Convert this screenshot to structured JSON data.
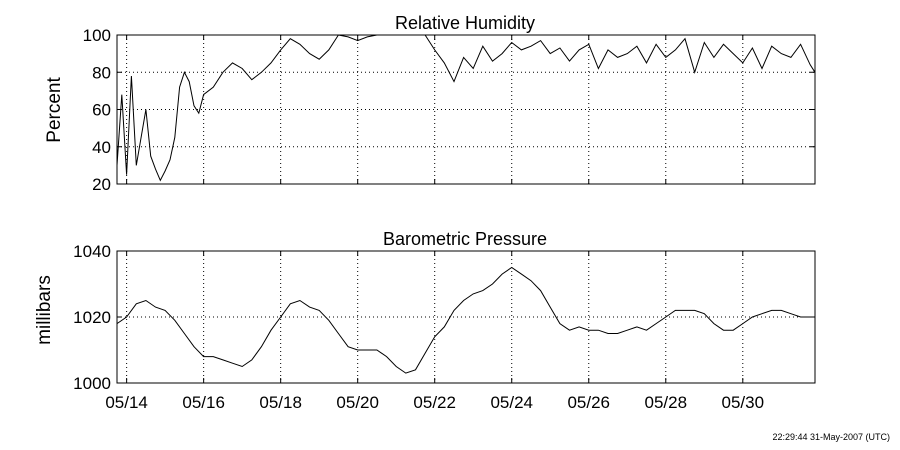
{
  "footer": {
    "timestamp": "22:29:44 31-May-2007 (UTC)"
  },
  "chart_data": [
    {
      "type": "line",
      "title": "Relative Humidity",
      "ylabel": "Percent",
      "xlabel": "",
      "x_axis_type": "date",
      "xlim": [
        "05/13 18:00",
        "05/31 21:00"
      ],
      "ylim": [
        20,
        100
      ],
      "yticks": [
        20,
        40,
        60,
        80,
        100
      ],
      "xticks": [
        "05/14",
        "05/16",
        "05/18",
        "05/20",
        "05/22",
        "05/24",
        "05/26",
        "05/28",
        "05/30"
      ],
      "xtick_labels_shown": false,
      "grid": true,
      "color": "#000000",
      "series": [
        {
          "x": [
            "05/13 18:00",
            "05/13 21:00",
            "05/14 00:00",
            "05/14 03:00",
            "05/14 06:00",
            "05/14 09:00",
            "05/14 12:00",
            "05/14 15:00",
            "05/14 18:00",
            "05/14 21:00",
            "05/15 00:00",
            "05/15 03:00",
            "05/15 06:00",
            "05/15 09:00",
            "05/15 12:00",
            "05/15 15:00",
            "05/15 18:00",
            "05/15 21:00",
            "05/16 00:00",
            "05/16 06:00",
            "05/16 12:00",
            "05/16 18:00",
            "05/17 00:00",
            "05/17 06:00",
            "05/17 12:00",
            "05/17 18:00",
            "05/18 00:00",
            "05/18 06:00",
            "05/18 12:00",
            "05/18 18:00",
            "05/19 00:00",
            "05/19 06:00",
            "05/19 12:00",
            "05/19 18:00",
            "05/20 00:00",
            "05/20 06:00",
            "05/20 12:00",
            "05/20 18:00",
            "05/21 00:00",
            "05/21 06:00",
            "05/21 12:00",
            "05/21 18:00",
            "05/22 00:00",
            "05/22 06:00",
            "05/22 12:00",
            "05/22 18:00",
            "05/23 00:00",
            "05/23 06:00",
            "05/23 12:00",
            "05/23 18:00",
            "05/24 00:00",
            "05/24 06:00",
            "05/24 12:00",
            "05/24 18:00",
            "05/25 00:00",
            "05/25 06:00",
            "05/25 12:00",
            "05/25 18:00",
            "05/26 00:00",
            "05/26 06:00",
            "05/26 12:00",
            "05/26 18:00",
            "05/27 00:00",
            "05/27 06:00",
            "05/27 12:00",
            "05/27 18:00",
            "05/28 00:00",
            "05/28 06:00",
            "05/28 12:00",
            "05/28 18:00",
            "05/29 00:00",
            "05/29 06:00",
            "05/29 12:00",
            "05/29 18:00",
            "05/30 00:00",
            "05/30 06:00",
            "05/30 12:00",
            "05/30 18:00",
            "05/31 00:00",
            "05/31 06:00",
            "05/31 12:00",
            "05/31 18:00",
            "05/31 21:00"
          ],
          "y": [
            30,
            68,
            25,
            78,
            30,
            45,
            60,
            35,
            28,
            22,
            27,
            33,
            45,
            72,
            80,
            75,
            62,
            58,
            68,
            72,
            80,
            85,
            82,
            76,
            80,
            85,
            92,
            98,
            95,
            90,
            87,
            92,
            100,
            99,
            97,
            99,
            100,
            100,
            100,
            100,
            100,
            100,
            92,
            85,
            75,
            88,
            82,
            94,
            86,
            90,
            96,
            92,
            94,
            97,
            90,
            93,
            86,
            92,
            95,
            82,
            92,
            88,
            90,
            94,
            85,
            95,
            88,
            92,
            98,
            80,
            96,
            88,
            95,
            90,
            85,
            93,
            82,
            94,
            90,
            88,
            95,
            84,
            80
          ]
        }
      ]
    },
    {
      "type": "line",
      "title": "Barometric Pressure",
      "ylabel": "millibars",
      "xlabel": "",
      "x_axis_type": "date",
      "xlim": [
        "05/13 18:00",
        "05/31 21:00"
      ],
      "ylim": [
        1000,
        1040
      ],
      "yticks": [
        1000,
        1020,
        1040
      ],
      "xticks": [
        "05/14",
        "05/16",
        "05/18",
        "05/20",
        "05/22",
        "05/24",
        "05/26",
        "05/28",
        "05/30"
      ],
      "xtick_labels_shown": true,
      "grid": true,
      "color": "#000000",
      "series": [
        {
          "x": [
            "05/13 18:00",
            "05/14 00:00",
            "05/14 06:00",
            "05/14 12:00",
            "05/14 18:00",
            "05/15 00:00",
            "05/15 06:00",
            "05/15 12:00",
            "05/15 18:00",
            "05/16 00:00",
            "05/16 06:00",
            "05/16 12:00",
            "05/16 18:00",
            "05/17 00:00",
            "05/17 06:00",
            "05/17 12:00",
            "05/17 18:00",
            "05/18 00:00",
            "05/18 06:00",
            "05/18 12:00",
            "05/18 18:00",
            "05/19 00:00",
            "05/19 06:00",
            "05/19 12:00",
            "05/19 18:00",
            "05/20 00:00",
            "05/20 06:00",
            "05/20 12:00",
            "05/20 18:00",
            "05/21 00:00",
            "05/21 06:00",
            "05/21 12:00",
            "05/21 18:00",
            "05/22 00:00",
            "05/22 06:00",
            "05/22 12:00",
            "05/22 18:00",
            "05/23 00:00",
            "05/23 06:00",
            "05/23 12:00",
            "05/23 18:00",
            "05/24 00:00",
            "05/24 06:00",
            "05/24 12:00",
            "05/24 18:00",
            "05/25 00:00",
            "05/25 06:00",
            "05/25 12:00",
            "05/25 18:00",
            "05/26 00:00",
            "05/26 06:00",
            "05/26 12:00",
            "05/26 18:00",
            "05/27 00:00",
            "05/27 06:00",
            "05/27 12:00",
            "05/27 18:00",
            "05/28 00:00",
            "05/28 06:00",
            "05/28 12:00",
            "05/28 18:00",
            "05/29 00:00",
            "05/29 06:00",
            "05/29 12:00",
            "05/29 18:00",
            "05/30 00:00",
            "05/30 06:00",
            "05/30 12:00",
            "05/30 18:00",
            "05/31 00:00",
            "05/31 06:00",
            "05/31 12:00",
            "05/31 18:00",
            "05/31 21:00"
          ],
          "y": [
            1018,
            1020,
            1024,
            1025,
            1023,
            1022,
            1019,
            1015,
            1011,
            1008,
            1008,
            1007,
            1006,
            1005,
            1007,
            1011,
            1016,
            1020,
            1024,
            1025,
            1023,
            1022,
            1019,
            1015,
            1011,
            1010,
            1010,
            1010,
            1008,
            1005,
            1003,
            1004,
            1009,
            1014,
            1017,
            1022,
            1025,
            1027,
            1028,
            1030,
            1033,
            1035,
            1033,
            1031,
            1028,
            1023,
            1018,
            1016,
            1017,
            1016,
            1016,
            1015,
            1015,
            1016,
            1017,
            1016,
            1018,
            1020,
            1022,
            1022,
            1022,
            1021,
            1018,
            1016,
            1016,
            1018,
            1020,
            1021,
            1022,
            1022,
            1021,
            1020,
            1020,
            1020
          ]
        }
      ]
    }
  ]
}
